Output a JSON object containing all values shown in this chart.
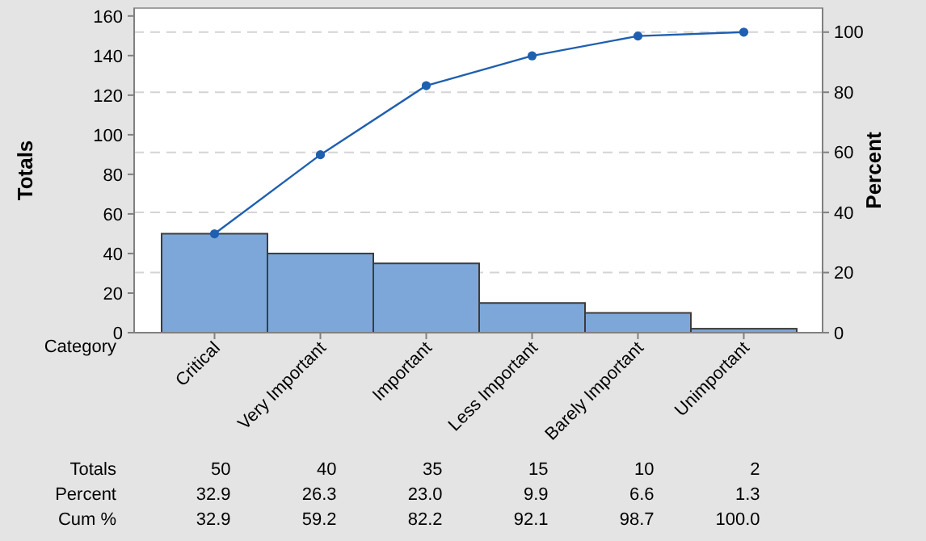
{
  "chart_data": {
    "type": "bar",
    "xlabel": "Category",
    "ylabel": "Totals",
    "y2label": "Percent",
    "categories": [
      "Critical",
      "Very Important",
      "Important",
      "Less Important",
      "Barely Important",
      "Unimportant"
    ],
    "series": [
      {
        "color": "#7da7d9",
        "values": [
          50,
          40,
          35,
          15,
          10,
          2
        ],
        "value_labels": [
          "50",
          "40",
          "35",
          "15",
          "10",
          "2"
        ]
      },
      {
        "type": "line",
        "axis": "y2",
        "color": "#1f5fb0",
        "values": [
          32.9,
          59.2,
          82.2,
          92.1,
          98.7,
          100.0
        ],
        "value_labels": [
          "32.9",
          "59.2",
          "82.2",
          "92.1",
          "98.7",
          "100.0"
        ]
      }
    ],
    "ylim": [
      0,
      164
    ],
    "yticks": [
      0,
      20,
      40,
      60,
      80,
      100,
      120,
      140,
      160
    ],
    "y2lim": [
      0,
      108
    ],
    "y2ticks": [
      0,
      20,
      40,
      60,
      80,
      100
    ],
    "grid": true,
    "marker": "circle",
    "line_style": "solid",
    "annotations": [
      "Totals",
      "Percent",
      "Cum %",
      "32.9",
      "26.3",
      "23.0",
      "9.9",
      "6.6",
      "1.3"
    ]
  }
}
